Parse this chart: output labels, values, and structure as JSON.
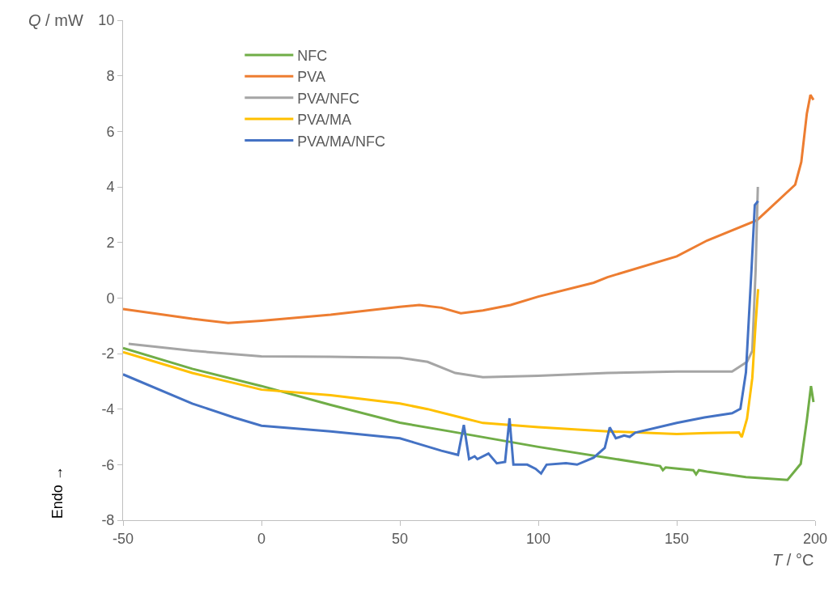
{
  "chart_data": {
    "type": "line",
    "xlabel": "T / °C",
    "ylabel": "Q / mW",
    "annotations": [
      "Endo →"
    ],
    "xlim": [
      -50,
      200
    ],
    "xticks": [
      -50,
      0,
      50,
      100,
      150,
      200
    ],
    "ylim": [
      -8,
      10
    ],
    "yticks": [
      -8,
      -6,
      -4,
      -2,
      0,
      2,
      4,
      6,
      8,
      10
    ],
    "legend": "top left",
    "marker": "none",
    "line_style": "solid",
    "series": [
      {
        "name": "NFC",
        "color": "#70ad47",
        "x": [
          -50,
          -25,
          0,
          25,
          50,
          68,
          100,
          144,
          145,
          146,
          156,
          157,
          158,
          161,
          175,
          190,
          194.8,
          197,
          198.5,
          199.4
        ],
        "values": [
          -1.8,
          -2.55,
          -3.17,
          -3.85,
          -4.49,
          -4.8,
          -5.36,
          -6.05,
          -6.2,
          -6.1,
          -6.2,
          -6.35,
          -6.2,
          -6.25,
          -6.45,
          -6.55,
          -5.97,
          -4.4,
          -3.17,
          -3.75
        ]
      },
      {
        "name": "PVA",
        "color": "#ed7d31",
        "x": [
          -50,
          -25,
          -12,
          0,
          25,
          50,
          57,
          65,
          72,
          80,
          90,
          100,
          120,
          125,
          150,
          161,
          179,
          192.8,
          195,
          197,
          198.3,
          199.4
        ],
        "values": [
          -0.4,
          -0.75,
          -0.9,
          -0.82,
          -0.6,
          -0.32,
          -0.25,
          -0.35,
          -0.55,
          -0.45,
          -0.25,
          0.05,
          0.55,
          0.75,
          1.5,
          2.07,
          2.8,
          4.08,
          4.9,
          6.64,
          7.31,
          7.13
        ]
      },
      {
        "name": "PVA/NFC",
        "color": "#a5a5a5",
        "x": [
          -48,
          -25,
          0,
          25,
          50,
          60,
          70,
          80,
          100,
          125,
          150,
          170,
          175.4,
          177.3,
          178.5,
          179.3
        ],
        "values": [
          -1.65,
          -1.9,
          -2.1,
          -2.12,
          -2.15,
          -2.3,
          -2.7,
          -2.85,
          -2.8,
          -2.7,
          -2.65,
          -2.65,
          -2.3,
          -1.9,
          1.0,
          4.0
        ]
      },
      {
        "name": "PVA/MA",
        "color": "#ffc000",
        "x": [
          -50,
          -25,
          0,
          25,
          50,
          60,
          72,
          80,
          100,
          125,
          150,
          161,
          172.5,
          173.5,
          175.4,
          177.3,
          178.5,
          179.4
        ],
        "values": [
          -1.95,
          -2.7,
          -3.3,
          -3.5,
          -3.8,
          -4.0,
          -4.3,
          -4.5,
          -4.65,
          -4.8,
          -4.9,
          -4.86,
          -4.84,
          -5.01,
          -4.34,
          -2.88,
          -0.93,
          0.32
        ]
      },
      {
        "name": "PVA/MA/NFC",
        "color": "#4472c4",
        "x": [
          -50,
          -25,
          -10,
          0,
          25,
          50,
          55,
          65,
          71,
          73.1,
          75,
          77,
          78,
          82,
          85,
          88,
          89.6,
          91,
          96,
          99,
          101,
          103,
          110,
          114,
          120,
          124,
          125.8,
          128,
          131,
          133,
          135,
          150,
          160,
          170,
          173,
          175,
          177,
          178.2,
          179.4
        ],
        "values": [
          -2.75,
          -3.8,
          -4.3,
          -4.6,
          -4.8,
          -5.05,
          -5.2,
          -5.5,
          -5.65,
          -4.57,
          -5.8,
          -5.7,
          -5.8,
          -5.6,
          -5.95,
          -5.9,
          -4.33,
          -6.0,
          -6.0,
          -6.15,
          -6.32,
          -6.0,
          -5.95,
          -6.0,
          -5.75,
          -5.4,
          -4.66,
          -5.05,
          -4.95,
          -5.0,
          -4.85,
          -4.5,
          -4.3,
          -4.15,
          -3.99,
          -2.68,
          1.0,
          3.34,
          3.49
        ]
      }
    ]
  }
}
